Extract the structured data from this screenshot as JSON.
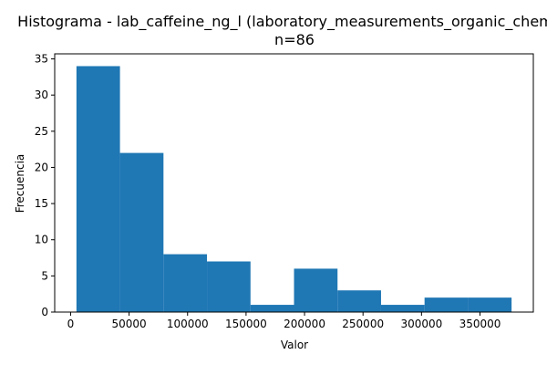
{
  "chart_data": {
    "type": "bar",
    "title": "Histograma - lab_caffeine_ng_l (laboratory_measurements_organic_chemicals)",
    "subtitle": "n=86",
    "xlabel": "Valor",
    "ylabel": "Frecuencia",
    "bin_edges": [
      5000,
      42200,
      79400,
      116600,
      153800,
      191000,
      228200,
      265400,
      302600,
      339800,
      377000
    ],
    "values": [
      34,
      22,
      8,
      7,
      1,
      6,
      3,
      1,
      2,
      2
    ],
    "xlim": [
      -13600,
      395600
    ],
    "ylim": [
      0,
      35.7
    ],
    "x_ticks": [
      0,
      50000,
      100000,
      150000,
      200000,
      250000,
      300000,
      350000
    ],
    "x_tick_labels": [
      "0",
      "50000",
      "100000",
      "150000",
      "200000",
      "250000",
      "300000",
      "350000"
    ],
    "y_ticks": [
      0,
      5,
      10,
      15,
      20,
      25,
      30,
      35
    ],
    "y_tick_labels": [
      "0",
      "5",
      "10",
      "15",
      "20",
      "25",
      "30",
      "35"
    ],
    "bar_color": "#1f77b4",
    "grid": false,
    "legend": "none"
  }
}
